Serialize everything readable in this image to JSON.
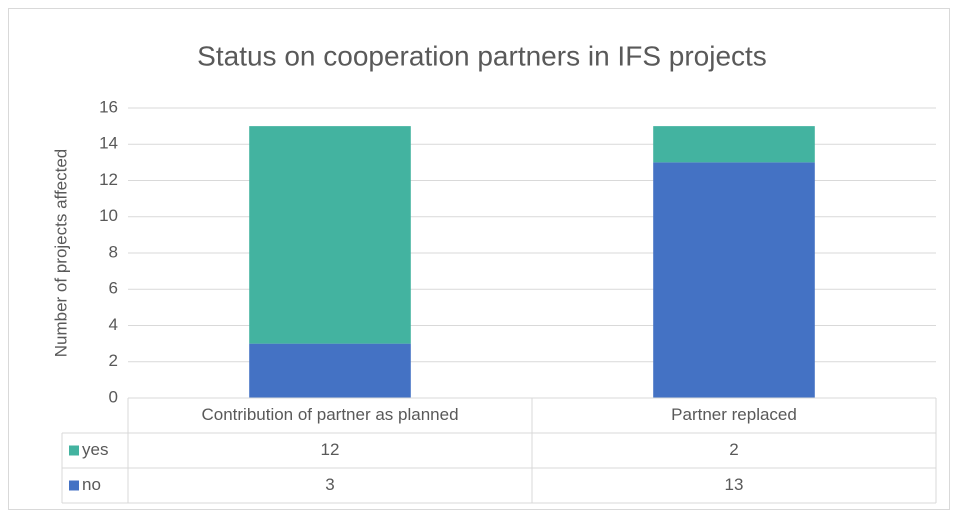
{
  "chart_data": {
    "type": "stacked_bar",
    "title": "Status on cooperation partners in IFS projects",
    "y_label": "Number of projects affected",
    "categories": [
      "Contribution of partner as planned",
      "Partner replaced"
    ],
    "series": [
      {
        "name": "yes",
        "color": "#43b3a0",
        "values": [
          12,
          2
        ]
      },
      {
        "name": "no",
        "color": "#4472c4",
        "values": [
          3,
          13
        ]
      }
    ],
    "ylim": [
      0,
      16
    ],
    "yticks": [
      0,
      2,
      4,
      6,
      8,
      10,
      12,
      14,
      16
    ],
    "grid": true,
    "data_table": true
  }
}
